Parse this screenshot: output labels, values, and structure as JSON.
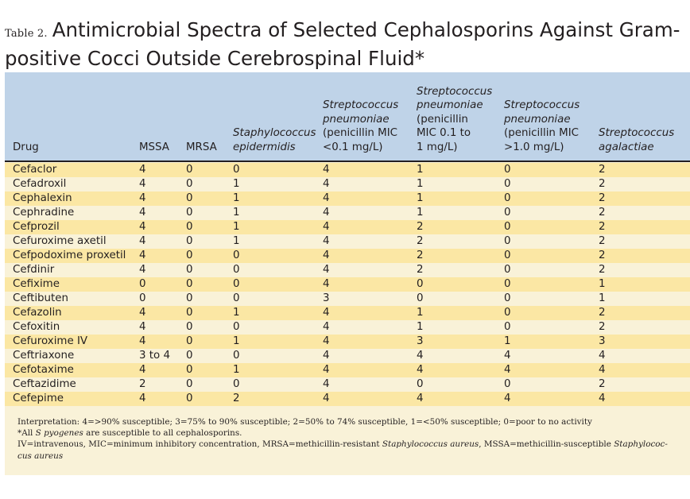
{
  "title": {
    "table_label": "Table 2.",
    "line1": "Antimicrobial Spectra of Selected Cephalosporins Against Gram-",
    "line2": "positive Cocci Outside Cerebrospinal Fluid*"
  },
  "columns": [
    {
      "lines": [
        "Drug"
      ],
      "italic": false
    },
    {
      "lines": [
        "MSSA"
      ],
      "italic": false
    },
    {
      "lines": [
        "MRSA"
      ],
      "italic": false
    },
    {
      "lines": [
        "Staphylococcus",
        "epidermidis"
      ],
      "italic": true
    },
    {
      "lines": [
        "Streptococcus",
        "pneumoniae",
        "(penicillin MIC",
        "<0.1 mg/L)"
      ],
      "italic_lines": 2
    },
    {
      "lines": [
        "Streptococcus",
        "pneumoniae",
        "(penicillin",
        "MIC 0.1 to",
        "1 mg/L)"
      ],
      "italic_lines": 2
    },
    {
      "lines": [
        "Streptococcus",
        "pneumoniae",
        "(penicillin MIC",
        ">1.0 mg/L)"
      ],
      "italic_lines": 2
    },
    {
      "lines": [
        "Streptococcus",
        "agalactiae"
      ],
      "italic": true
    }
  ],
  "rows": [
    [
      "Cefaclor",
      "4",
      "0",
      "0",
      "4",
      "1",
      "0",
      "2"
    ],
    [
      "Cefadroxil",
      "4",
      "0",
      "1",
      "4",
      "1",
      "0",
      "2"
    ],
    [
      "Cephalexin",
      "4",
      "0",
      "1",
      "4",
      "1",
      "0",
      "2"
    ],
    [
      "Cephradine",
      "4",
      "0",
      "1",
      "4",
      "1",
      "0",
      "2"
    ],
    [
      "Cefprozil",
      "4",
      "0",
      "1",
      "4",
      "2",
      "0",
      "2"
    ],
    [
      "Cefuroxime axetil",
      "4",
      "0",
      "1",
      "4",
      "2",
      "0",
      "2"
    ],
    [
      "Cefpodoxime proxetil",
      "4",
      "0",
      "0",
      "4",
      "2",
      "0",
      "2"
    ],
    [
      "Cefdinir",
      "4",
      "0",
      "0",
      "4",
      "2",
      "0",
      "2"
    ],
    [
      "Cefixime",
      "0",
      "0",
      "0",
      "4",
      "0",
      "0",
      "1"
    ],
    [
      "Ceftibuten",
      "0",
      "0",
      "0",
      "3",
      "0",
      "0",
      "1"
    ],
    [
      "Cefazolin",
      "4",
      "0",
      "1",
      "4",
      "1",
      "0",
      "2"
    ],
    [
      "Cefoxitin",
      "4",
      "0",
      "0",
      "4",
      "1",
      "0",
      "2"
    ],
    [
      "Cefuroxime IV",
      "4",
      "0",
      "1",
      "4",
      "3",
      "1",
      "3"
    ],
    [
      "Ceftriaxone",
      "3 to 4",
      "0",
      "0",
      "4",
      "4",
      "4",
      "4"
    ],
    [
      "Cefotaxime",
      "4",
      "0",
      "1",
      "4",
      "4",
      "4",
      "4"
    ],
    [
      "Ceftazidime",
      "2",
      "0",
      "0",
      "4",
      "0",
      "0",
      "2"
    ],
    [
      "Cefepime",
      "4",
      "0",
      "2",
      "4",
      "4",
      "4",
      "4"
    ]
  ],
  "notes": {
    "interpretation": "Interpretation: 4=>90% susceptible; 3=75% to 90% susceptible; 2=50% to 74% susceptible, 1=<50% susceptible; 0=poor to no activity",
    "spyogenes_prefix": "*All ",
    "spyogenes_italic": "S pyogenes",
    "spyogenes_suffix": " are susceptible to all cephalosporins.",
    "abbrev_1": "IV=intravenous, MIC=minimum inhibitory concentration, MRSA=methicillin-resistant ",
    "abbrev_1_italic": "Staphylococcus aureus",
    "abbrev_2": ", MSSA=methicillin-susceptible ",
    "abbrev_2_italic": "Staphylococ-",
    "abbrev_3_italic": "cus aureus"
  },
  "colors": {
    "header_band": "#bfd3e8",
    "body_band": "#f9f2d8",
    "shaded_row": "#fbe7a4",
    "text": "#231f20"
  }
}
